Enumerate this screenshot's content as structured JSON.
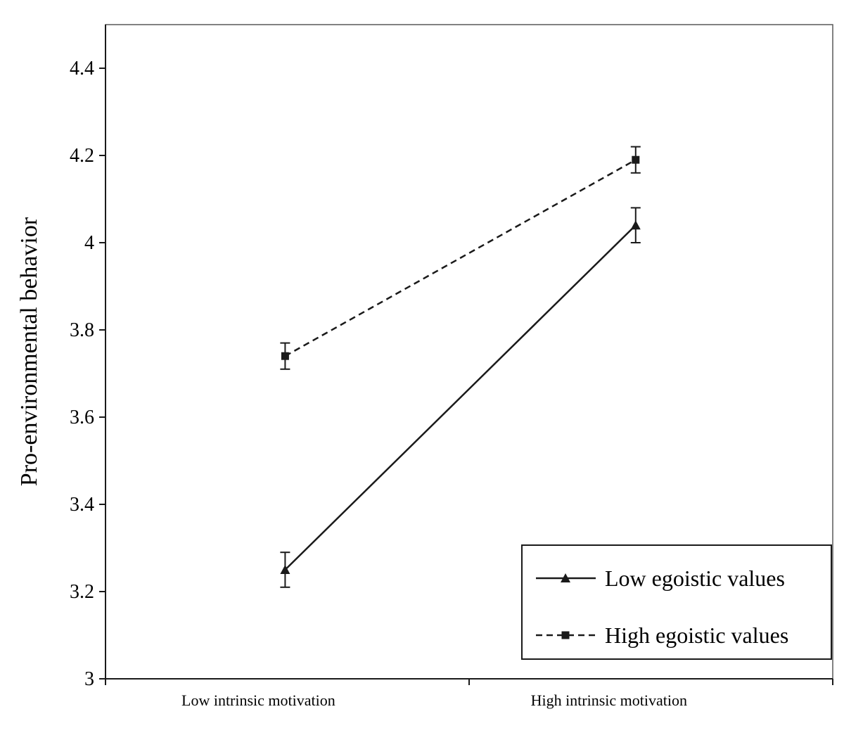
{
  "chart_data": {
    "type": "line",
    "title": "",
    "xlabel": "",
    "ylabel": "Pro-environmental behavior",
    "categories": [
      "Low  intrinsic motivation",
      "High  intrinsic motivation"
    ],
    "ylim": [
      3,
      4.5
    ],
    "yticks": [
      3,
      3.2,
      3.4,
      3.6,
      3.8,
      4,
      4.2,
      4.4
    ],
    "ytick_labels": [
      "3",
      "3.2",
      "3.4",
      "3.6",
      "3.8",
      "4",
      "4.2",
      "4.4"
    ],
    "series": [
      {
        "name": "Low egoistic values",
        "values": [
          3.25,
          4.04
        ],
        "errors": [
          0.04,
          0.04
        ],
        "line": "solid",
        "marker": "triangle"
      },
      {
        "name": "High egoistic values",
        "values": [
          3.74,
          4.19
        ],
        "errors": [
          0.03,
          0.03
        ],
        "line": "dashed",
        "marker": "square"
      }
    ],
    "legend_position": "lower right",
    "grid": "off",
    "colors": {
      "line": "#1a1a1a",
      "border": "#595959",
      "background": "#ffffff"
    }
  }
}
